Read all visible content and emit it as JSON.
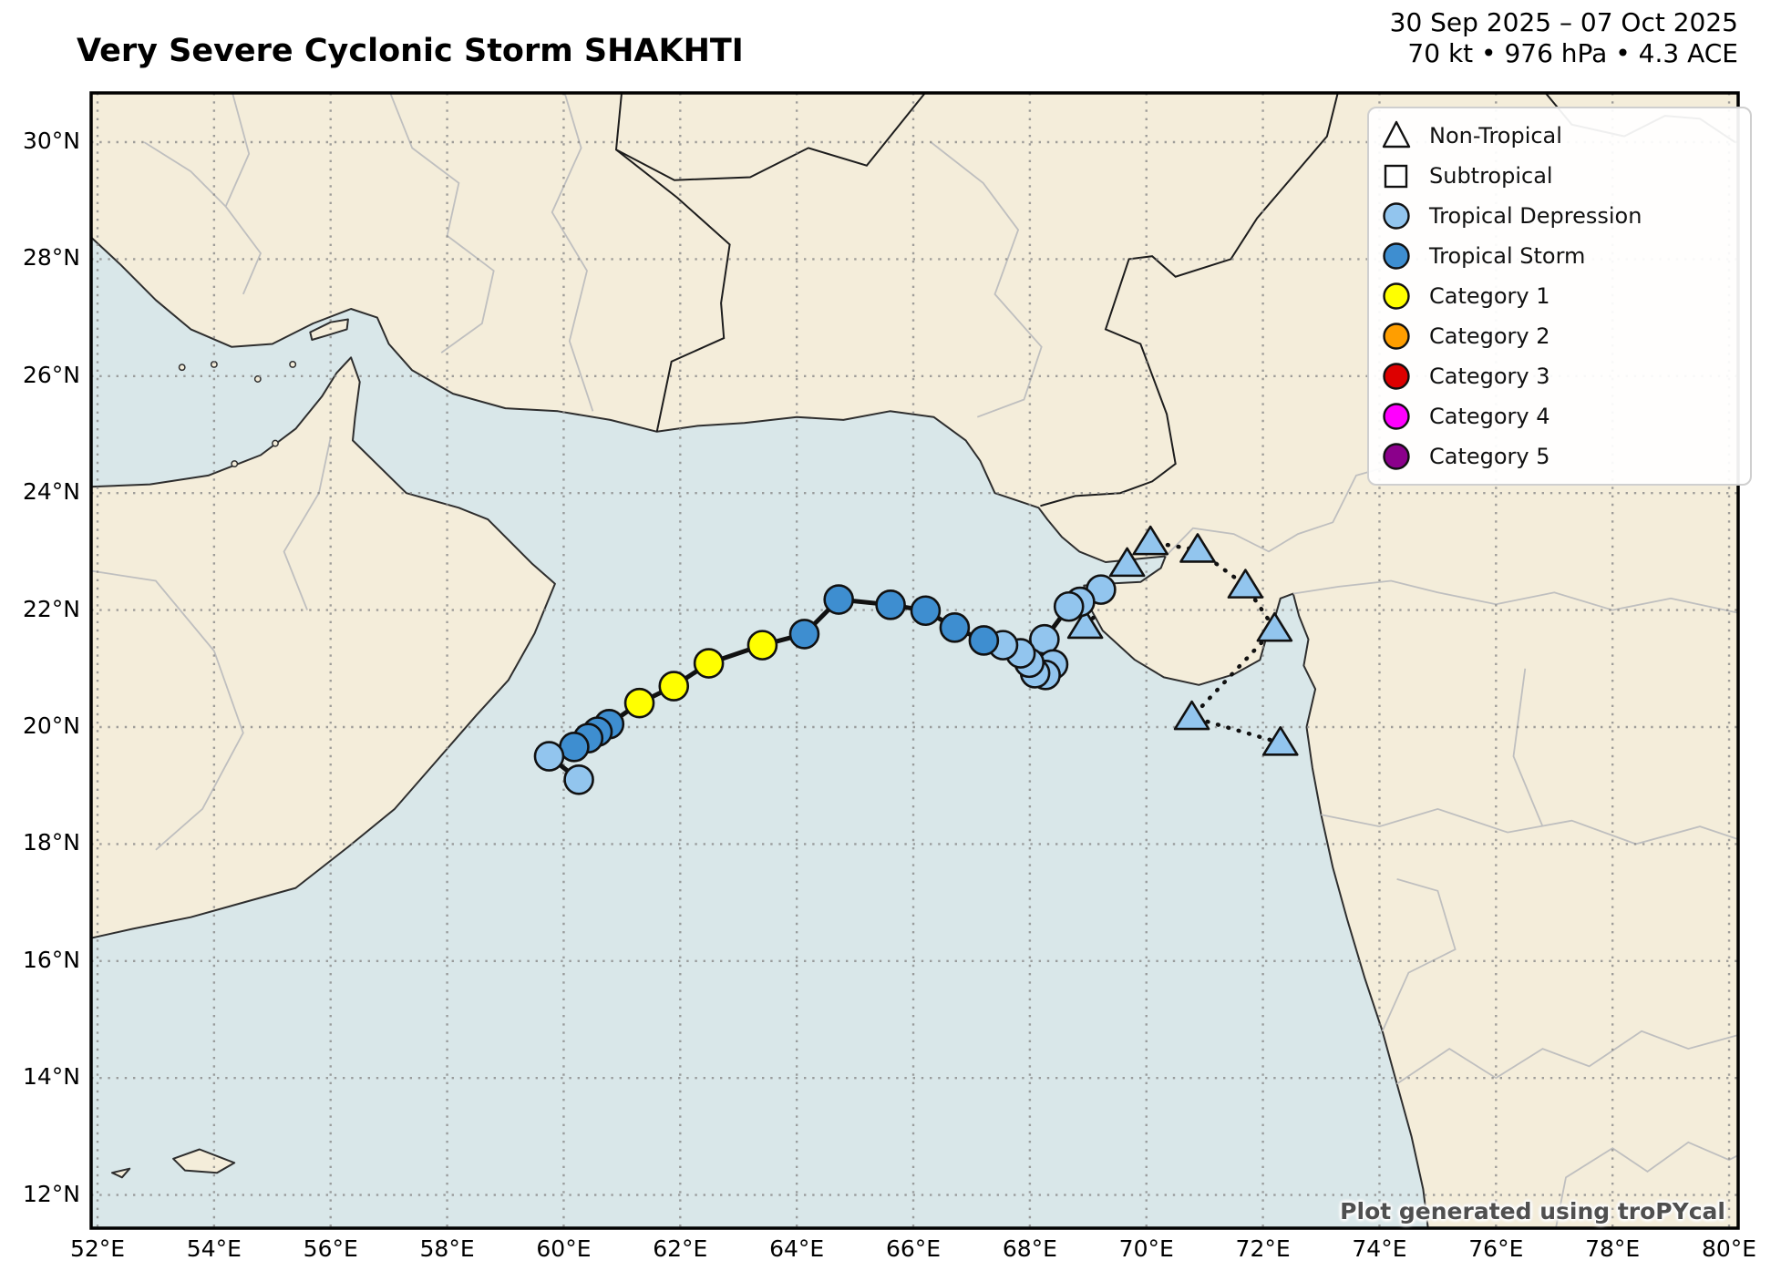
{
  "header": {
    "title": "Very Severe Cyclonic Storm SHAKHTI",
    "date_range": "30 Sep 2025 – 07 Oct 2025",
    "stats_line": "70 kt • 976 hPa • 4.3 ACE"
  },
  "map": {
    "attribution": "Plot generated using troPYcal"
  },
  "legend": {
    "items": [
      {
        "label": "Non-Tropical",
        "marker": "triangle",
        "fill": "#ffffff"
      },
      {
        "label": "Subtropical",
        "marker": "square",
        "fill": "#ffffff"
      },
      {
        "label": "Tropical Depression",
        "marker": "circle",
        "fill": "#92c5ee"
      },
      {
        "label": "Tropical Storm",
        "marker": "circle",
        "fill": "#3e8ed0"
      },
      {
        "label": "Category 1",
        "marker": "circle",
        "fill": "#ffff00"
      },
      {
        "label": "Category 2",
        "marker": "circle",
        "fill": "#ff9e00"
      },
      {
        "label": "Category 3",
        "marker": "circle",
        "fill": "#dd0000"
      },
      {
        "label": "Category 4",
        "marker": "circle",
        "fill": "#ff00fe"
      },
      {
        "label": "Category 5",
        "marker": "circle",
        "fill": "#8b008b"
      }
    ]
  },
  "axes": {
    "lon_ticks": [
      {
        "v": 52,
        "label": "52°E"
      },
      {
        "v": 54,
        "label": "54°E"
      },
      {
        "v": 56,
        "label": "56°E"
      },
      {
        "v": 58,
        "label": "58°E"
      },
      {
        "v": 60,
        "label": "60°E"
      },
      {
        "v": 62,
        "label": "62°E"
      },
      {
        "v": 64,
        "label": "64°E"
      },
      {
        "v": 66,
        "label": "66°E"
      },
      {
        "v": 68,
        "label": "68°E"
      },
      {
        "v": 70,
        "label": "70°E"
      },
      {
        "v": 72,
        "label": "72°E"
      },
      {
        "v": 74,
        "label": "74°E"
      },
      {
        "v": 76,
        "label": "76°E"
      },
      {
        "v": 78,
        "label": "78°E"
      },
      {
        "v": 80,
        "label": "80°E"
      }
    ],
    "lat_ticks": [
      {
        "v": 12,
        "label": "12°N"
      },
      {
        "v": 14,
        "label": "14°N"
      },
      {
        "v": 16,
        "label": "16°N"
      },
      {
        "v": 18,
        "label": "18°N"
      },
      {
        "v": 20,
        "label": "20°N"
      },
      {
        "v": 22,
        "label": "22°N"
      },
      {
        "v": 24,
        "label": "24°N"
      },
      {
        "v": 26,
        "label": "26°N"
      },
      {
        "v": 28,
        "label": "28°N"
      },
      {
        "v": 30,
        "label": "30°N"
      }
    ]
  },
  "chart_data": {
    "type": "scatter",
    "subtype": "storm-track-map",
    "storm_classification": "Very Severe Cyclonic Storm",
    "storm_name": "SHAKHTI",
    "date_start": "30 Sep 2025",
    "date_end": "07 Oct 2025",
    "peak_wind_kt": 70,
    "min_pressure_hpa": 976,
    "ace": 4.3,
    "lon_range": [
      51.7,
      80.35
    ],
    "lat_range": [
      11.35,
      30.9
    ],
    "grid": "dotted",
    "status_colors": {
      "TD": "#92c5ee",
      "TS": "#3e8ed0",
      "C1": "#ffff00"
    },
    "ocean_color": "#d9e7e9",
    "land_color": "#f4edda",
    "non_tropical_track": [
      {
        "lon": 72.3,
        "lat": 19.73
      },
      {
        "lon": 70.78,
        "lat": 20.17
      },
      {
        "lon": 72.2,
        "lat": 21.68
      },
      {
        "lon": 71.7,
        "lat": 22.42
      },
      {
        "lon": 70.88,
        "lat": 23.03
      },
      {
        "lon": 70.07,
        "lat": 23.16
      },
      {
        "lon": 69.67,
        "lat": 22.79
      }
    ],
    "isolated_non_tropical": [
      {
        "lon": 68.95,
        "lat": 21.73
      }
    ],
    "main_track": [
      {
        "lon": 69.22,
        "lat": 22.35,
        "status": "TD"
      },
      {
        "lon": 68.86,
        "lat": 22.14,
        "status": "TD"
      },
      {
        "lon": 68.67,
        "lat": 22.06,
        "status": "TD"
      },
      {
        "lon": 68.25,
        "lat": 21.5,
        "status": "TD"
      },
      {
        "lon": 68.4,
        "lat": 21.07,
        "status": "TD"
      },
      {
        "lon": 68.27,
        "lat": 20.89,
        "status": "TD"
      },
      {
        "lon": 68.09,
        "lat": 20.92,
        "status": "TD"
      },
      {
        "lon": 67.99,
        "lat": 21.1,
        "status": "TD"
      },
      {
        "lon": 67.84,
        "lat": 21.26,
        "status": "TD"
      },
      {
        "lon": 67.54,
        "lat": 21.4,
        "status": "TD"
      },
      {
        "lon": 67.21,
        "lat": 21.48,
        "status": "TS"
      },
      {
        "lon": 66.71,
        "lat": 21.7,
        "status": "TS"
      },
      {
        "lon": 66.21,
        "lat": 21.99,
        "status": "TS"
      },
      {
        "lon": 65.61,
        "lat": 22.09,
        "status": "TS"
      },
      {
        "lon": 64.72,
        "lat": 22.18,
        "status": "TS"
      },
      {
        "lon": 64.13,
        "lat": 21.59,
        "status": "TS"
      },
      {
        "lon": 63.41,
        "lat": 21.4,
        "status": "C1"
      },
      {
        "lon": 62.49,
        "lat": 21.09,
        "status": "C1"
      },
      {
        "lon": 61.89,
        "lat": 20.7,
        "status": "C1"
      },
      {
        "lon": 61.3,
        "lat": 20.41,
        "status": "C1"
      },
      {
        "lon": 60.78,
        "lat": 20.05,
        "status": "TS"
      },
      {
        "lon": 60.58,
        "lat": 19.92,
        "status": "TS"
      },
      {
        "lon": 60.42,
        "lat": 19.81,
        "status": "TS"
      },
      {
        "lon": 60.18,
        "lat": 19.66,
        "status": "TS"
      },
      {
        "lon": 59.75,
        "lat": 19.5,
        "status": "TD"
      },
      {
        "lon": 60.26,
        "lat": 19.1,
        "status": "TD"
      }
    ]
  }
}
